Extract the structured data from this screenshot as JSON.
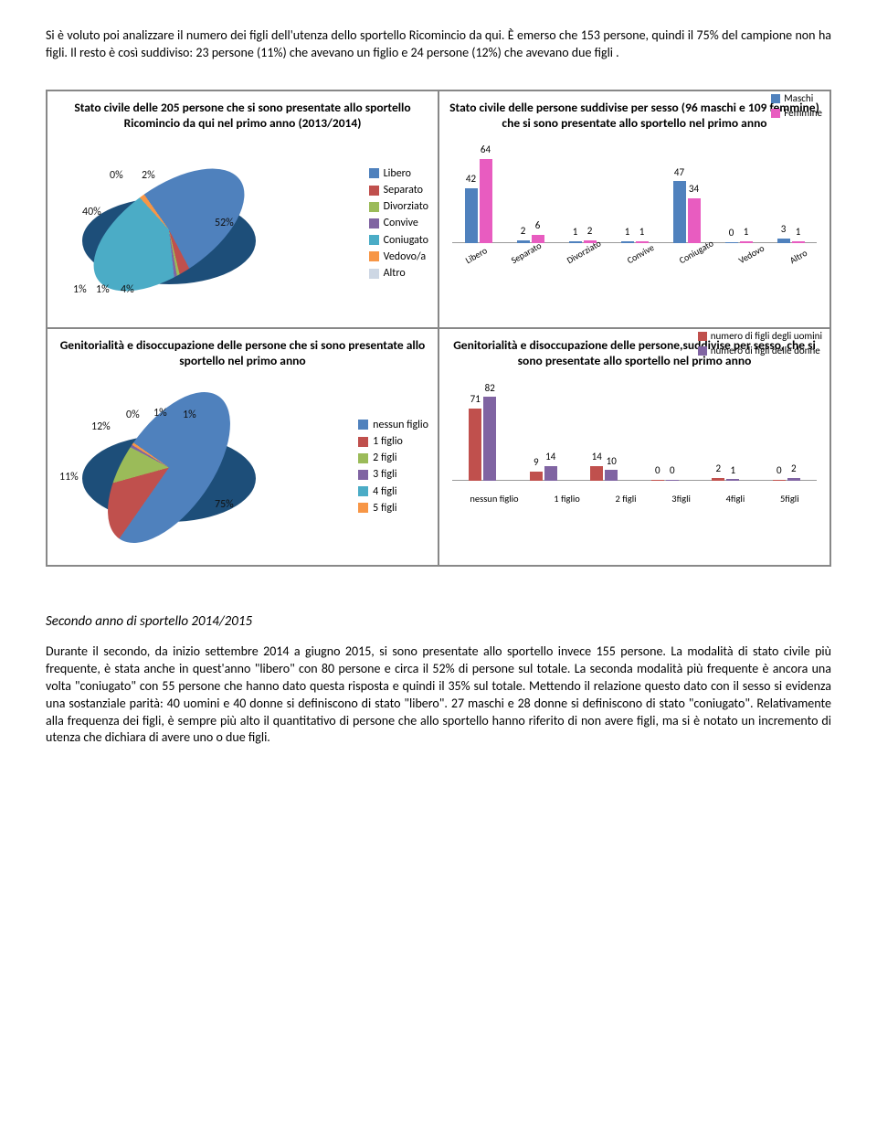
{
  "intro": "Si è voluto poi analizzare il numero dei figli dell'utenza dello sportello Ricomincio da qui. È emerso che 153 persone, quindi il 75% del campione non ha figli. Il resto è così suddiviso: 23 persone (11%) che avevano un figlio e 24  persone (12%) che avevano due figli .",
  "pie1": {
    "title": "Stato civile delle 205 persone che si sono presentate allo sportello Ricomincio da qui nel primo anno (2013/2014)",
    "labels": {
      "a": "0%",
      "b": "2%",
      "c": "40%",
      "d": "52%",
      "e": "1%",
      "f": "1%",
      "g": "4%"
    },
    "legend": [
      {
        "c": "#4f81bd",
        "t": "Libero"
      },
      {
        "c": "#c0504d",
        "t": "Separato"
      },
      {
        "c": "#9bbb59",
        "t": "Divorziato"
      },
      {
        "c": "#8064a2",
        "t": "Convive"
      },
      {
        "c": "#4bacc6",
        "t": "Coniugato"
      },
      {
        "c": "#f79646",
        "t": "Vedovo/a"
      },
      {
        "c": "#cdd7e4",
        "t": "Altro"
      }
    ]
  },
  "bar1": {
    "title": "Stato civile delle persone suddivise per sesso (96 maschi e 109 femmine) che si sono presentate allo sportello nel primo anno",
    "series": [
      {
        "c": "#4f81bd",
        "t": "Maschi"
      },
      {
        "c": "#e85cc0",
        "t": "Femmine"
      }
    ],
    "cats": [
      "Libero",
      "Separato",
      "Divorziato",
      "Convive",
      "Coniugato",
      "Vedovo",
      "Altro"
    ],
    "m": [
      42,
      2,
      1,
      1,
      47,
      0,
      3
    ],
    "f": [
      64,
      6,
      2,
      1,
      34,
      1,
      1
    ],
    "max": 70
  },
  "pie2": {
    "title": "Genitorialità e disoccupazione delle persone che si sono presentate allo sportello nel primo anno",
    "labels": {
      "a": "11%",
      "b": "12%",
      "c": "0%",
      "d": "1%",
      "e": "1%",
      "f": "75%"
    },
    "legend": [
      {
        "c": "#4f81bd",
        "t": "nessun figlio"
      },
      {
        "c": "#c0504d",
        "t": "1 figlio"
      },
      {
        "c": "#9bbb59",
        "t": "2 figli"
      },
      {
        "c": "#8064a2",
        "t": "3 figli"
      },
      {
        "c": "#4bacc6",
        "t": "4 figli"
      },
      {
        "c": "#f79646",
        "t": "5 figli"
      }
    ]
  },
  "bar2": {
    "title": "Genitorialità e disoccupazione delle persone,suddivise per sesso, che si sono presentate allo sportello nel primo anno",
    "series": [
      {
        "c": "#c0504d",
        "t": "numero di figli degli uomini"
      },
      {
        "c": "#8064a2",
        "t": "numero di figli delle donne"
      }
    ],
    "cats": [
      "nessun figlio",
      "1 figlio",
      "2 figli",
      "3figli",
      "4figli",
      "5figli"
    ],
    "m": [
      71,
      9,
      14,
      0,
      2,
      0
    ],
    "f": [
      82,
      14,
      10,
      0,
      1,
      2
    ],
    "max": 90
  },
  "subhead": "Secondo anno di sportello 2014/2015",
  "outro": "Durante il secondo, da inizio settembre 2014 a giugno 2015, si sono presentate allo sportello invece 155 persone. La modalità di stato civile più frequente, è stata anche in quest'anno \"libero\" con 80 persone e circa il 52% di persone sul totale. La seconda modalità più frequente è ancora una volta \"coniugato\" con 55 persone che hanno dato questa risposta e quindi il 35% sul totale. Mettendo il relazione questo dato con il sesso si evidenza una sostanziale parità: 40 uomini e 40 donne si definiscono di stato \"libero\". 27 maschi e 28 donne si definiscono di stato \"coniugato\". Relativamente alla frequenza dei figli, è sempre più alto il quantitativo di persone che allo sportello hanno riferito di non avere figli, ma si è notato un incremento di utenza che dichiara di avere uno o due figli."
}
